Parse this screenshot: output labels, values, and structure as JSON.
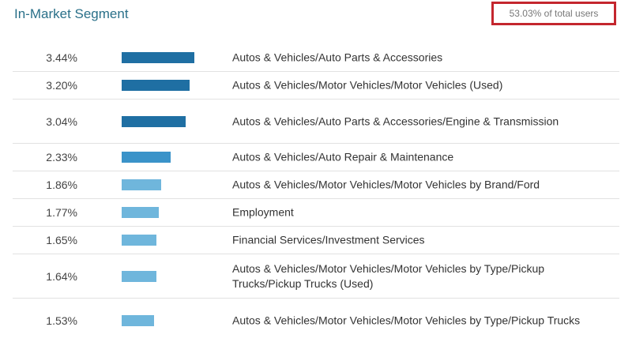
{
  "header": {
    "title": "In-Market Segment",
    "users_badge": "53.03% of total users"
  },
  "colors": {
    "bar_dark": "#1f6fa3",
    "bar_mid": "#3a93c9",
    "bar_light": "#6fb6dc",
    "highlight_border": "#c4262e",
    "title": "#2a7089"
  },
  "segments": [
    {
      "percent": "3.44%",
      "value": 3.44,
      "label": "Autos & Vehicles/Auto Parts & Accessories"
    },
    {
      "percent": "3.20%",
      "value": 3.2,
      "label": "Autos & Vehicles/Motor Vehicles/Motor Vehicles (Used)"
    },
    {
      "percent": "3.04%",
      "value": 3.04,
      "label": "Autos & Vehicles/Auto Parts & Accessories/Engine & Transmission"
    },
    {
      "percent": "2.33%",
      "value": 2.33,
      "label": "Autos & Vehicles/Auto Repair & Maintenance"
    },
    {
      "percent": "1.86%",
      "value": 1.86,
      "label": "Autos & Vehicles/Motor Vehicles/Motor Vehicles by Brand/Ford"
    },
    {
      "percent": "1.77%",
      "value": 1.77,
      "label": "Employment"
    },
    {
      "percent": "1.65%",
      "value": 1.65,
      "label": "Financial Services/Investment Services"
    },
    {
      "percent": "1.64%",
      "value": 1.64,
      "label": "Autos & Vehicles/Motor Vehicles/Motor Vehicles by Type/Pickup Trucks/Pickup Trucks (Used)"
    },
    {
      "percent": "1.53%",
      "value": 1.53,
      "label": "Autos & Vehicles/Motor Vehicles/Motor Vehicles by Type/Pickup Trucks"
    }
  ]
}
